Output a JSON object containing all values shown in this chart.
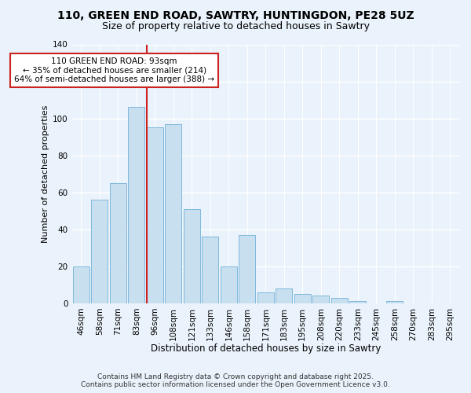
{
  "title": "110, GREEN END ROAD, SAWTRY, HUNTINGDON, PE28 5UZ",
  "subtitle": "Size of property relative to detached houses in Sawtry",
  "xlabel": "Distribution of detached houses by size in Sawtry",
  "ylabel": "Number of detached properties",
  "bar_labels": [
    "46sqm",
    "58sqm",
    "71sqm",
    "83sqm",
    "96sqm",
    "108sqm",
    "121sqm",
    "133sqm",
    "146sqm",
    "158sqm",
    "171sqm",
    "183sqm",
    "195sqm",
    "208sqm",
    "220sqm",
    "233sqm",
    "245sqm",
    "258sqm",
    "270sqm",
    "283sqm",
    "295sqm"
  ],
  "bar_values": [
    20,
    56,
    65,
    106,
    95,
    97,
    51,
    36,
    20,
    37,
    6,
    8,
    5,
    4,
    3,
    1,
    0,
    1,
    0,
    0,
    0
  ],
  "bar_color": "#c8dff0",
  "bar_edge_color": "#7fb8dc",
  "vline_color": "#cc2222",
  "annotation_text": "110 GREEN END ROAD: 93sqm\n← 35% of detached houses are smaller (214)\n64% of semi-detached houses are larger (388) →",
  "annotation_box_facecolor": "#ffffff",
  "annotation_box_edgecolor": "#cc2222",
  "ylim": [
    0,
    140
  ],
  "yticks": [
    0,
    20,
    40,
    60,
    80,
    100,
    120,
    140
  ],
  "footer_line1": "Contains HM Land Registry data © Crown copyright and database right 2025.",
  "footer_line2": "Contains public sector information licensed under the Open Government Licence v3.0.",
  "background_color": "#eaf3fb",
  "plot_bg_color": "#eaf3fb",
  "grid_color": "#ffffff",
  "title_fontsize": 10,
  "subtitle_fontsize": 9,
  "xlabel_fontsize": 8.5,
  "ylabel_fontsize": 8,
  "tick_fontsize": 7.5,
  "annotation_fontsize": 7.5,
  "footer_fontsize": 6.5,
  "vline_index": 3.57
}
